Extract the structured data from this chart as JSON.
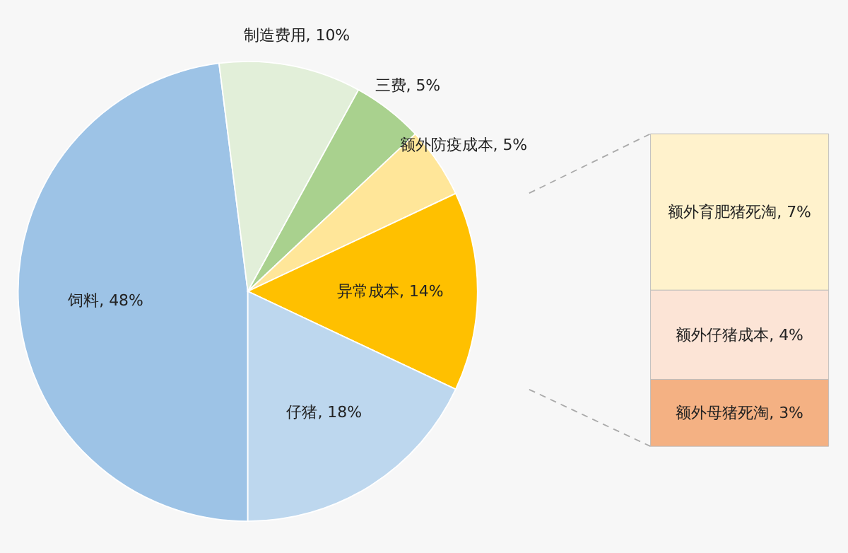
{
  "chart_data": [
    {
      "type": "pie",
      "categories": [
        "饲料",
        "制造费用",
        "三费",
        "额外防疫成本",
        "异常成本",
        "仔猪"
      ],
      "values": [
        48,
        10,
        5,
        5,
        14,
        18
      ],
      "value_labels": [
        "48%",
        "10%",
        "5%",
        "5%",
        "14%",
        "18%"
      ],
      "colors": [
        "#9dc3e6",
        "#e2efd9",
        "#a9d18e",
        "#ffe699",
        "#ffc000",
        "#bdd7ee"
      ]
    },
    {
      "type": "bar",
      "stacked": true,
      "categories": [
        null
      ],
      "series": [
        {
          "color": "#f4b183",
          "values": [
            3
          ],
          "value_labels": [
            "额外母猪死淘, 3%"
          ]
        },
        {
          "color": "#fce4d6",
          "values": [
            4
          ],
          "value_labels": [
            "额外仔猪成本, 4%"
          ]
        },
        {
          "color": "#fff2cc",
          "values": [
            7
          ],
          "value_labels": [
            "额外育肥猪死淘, 7%"
          ]
        }
      ]
    }
  ]
}
